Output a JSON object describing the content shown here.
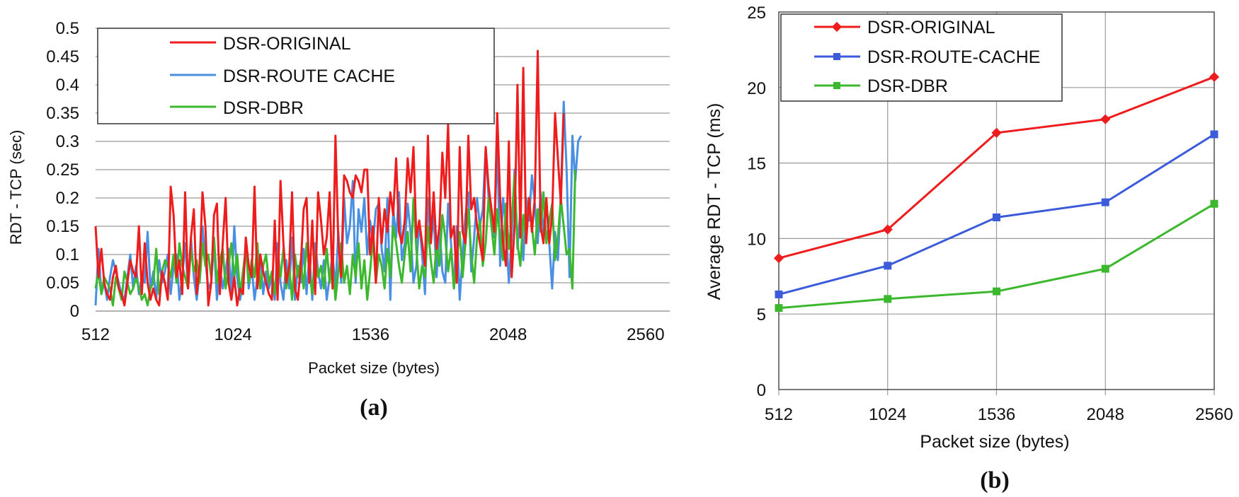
{
  "chart_data": [
    {
      "id": "a",
      "type": "line",
      "caption": "(a)",
      "xlabel": "Packet size (bytes)",
      "ylabel": "RDT - TCP (sec)",
      "xlim": [
        512,
        2650
      ],
      "ylim": [
        0,
        0.5
      ],
      "x_ticks": [
        512,
        1024,
        1536,
        2048,
        2560
      ],
      "x_tick_labels": [
        "512",
        "1024",
        "1536",
        "2048",
        "2560"
      ],
      "y_ticks": [
        0,
        0.05,
        0.1,
        0.15,
        0.2,
        0.25,
        0.3,
        0.35,
        0.4,
        0.45,
        0.5
      ],
      "y_tick_labels": [
        "0",
        "0.05",
        "0.1",
        "0.15",
        "0.2",
        "0.25",
        "0.3",
        "0.35",
        "0.4",
        "0.45",
        "0.5"
      ],
      "grid": "horizontal",
      "legend_position": "top-left",
      "x_step": 10.76,
      "series": [
        {
          "name": "DSR-ORIGINAL",
          "color": "#ee1c1c",
          "values": [
            0.15,
            0.06,
            0.11,
            0.05,
            0.03,
            0.02,
            0.06,
            0.08,
            0.04,
            0.03,
            0.01,
            0.05,
            0.09,
            0.07,
            0.06,
            0.15,
            0.03,
            0.12,
            0.05,
            0.02,
            0.04,
            0.02,
            0.01,
            0.07,
            0.05,
            0.02,
            0.22,
            0.17,
            0.06,
            0.09,
            0.03,
            0.21,
            0.04,
            0.13,
            0.18,
            0.03,
            0.08,
            0.21,
            0.15,
            0.01,
            0.05,
            0.17,
            0.19,
            0.03,
            0.12,
            0.2,
            0.05,
            0.02,
            0.06,
            0.01,
            0.04,
            0.03,
            0.13,
            0.08,
            0.06,
            0.22,
            0.04,
            0.1,
            0.07,
            0.05,
            0.03,
            0.02,
            0.16,
            0.02,
            0.23,
            0.12,
            0.05,
            0.08,
            0.21,
            0.04,
            0.02,
            0.08,
            0.18,
            0.2,
            0.05,
            0.16,
            0.03,
            0.21,
            0.16,
            0.1,
            0.13,
            0.21,
            0.04,
            0.31,
            0.12,
            0.06,
            0.24,
            0.23,
            0.21,
            0.2,
            0.24,
            0.23,
            0.21,
            0.25,
            0.25,
            0.1,
            0.15,
            0.05,
            0.2,
            0.12,
            0.18,
            0.14,
            0.21,
            0.17,
            0.27,
            0.14,
            0.12,
            0.16,
            0.27,
            0.21,
            0.29,
            0.13,
            0.16,
            0.12,
            0.08,
            0.31,
            0.12,
            0.21,
            0.11,
            0.15,
            0.28,
            0.2,
            0.33,
            0.13,
            0.15,
            0.05,
            0.29,
            0.14,
            0.12,
            0.31,
            0.18,
            0.2,
            0.15,
            0.12,
            0.09,
            0.29,
            0.22,
            0.18,
            0.14,
            0.35,
            0.2,
            0.12,
            0.08,
            0.3,
            0.06,
            0.15,
            0.4,
            0.13,
            0.43,
            0.12,
            0.2,
            0.14,
            0.2,
            0.46,
            0.15,
            0.12,
            0.2,
            0.12,
            0.17,
            0.35,
            0.27,
            0.19,
            0.35
          ]
        },
        {
          "name": "DSR-ROUTE CACHE",
          "color": "#4a90e2",
          "values": [
            0.01,
            0.11,
            0.03,
            0.05,
            0.02,
            0.06,
            0.09,
            0.07,
            0.05,
            0.03,
            0.02,
            0.06,
            0.1,
            0.04,
            0.08,
            0.03,
            0.06,
            0.05,
            0.14,
            0.04,
            0.07,
            0.02,
            0.09,
            0.05,
            0.07,
            0.1,
            0.03,
            0.08,
            0.1,
            0.02,
            0.06,
            0.12,
            0.04,
            0.13,
            0.06,
            0.02,
            0.07,
            0.15,
            0.09,
            0.04,
            0.05,
            0.12,
            0.02,
            0.08,
            0.04,
            0.07,
            0.11,
            0.03,
            0.15,
            0.06,
            0.02,
            0.05,
            0.12,
            0.04,
            0.08,
            0.02,
            0.06,
            0.1,
            0.03,
            0.07,
            0.04,
            0.06,
            0.02,
            0.12,
            0.05,
            0.02,
            0.09,
            0.04,
            0.13,
            0.02,
            0.08,
            0.05,
            0.11,
            0.03,
            0.1,
            0.02,
            0.12,
            0.07,
            0.04,
            0.09,
            0.02,
            0.06,
            0.1,
            0.04,
            0.14,
            0.05,
            0.2,
            0.12,
            0.15,
            0.23,
            0.05,
            0.18,
            0.14,
            0.2,
            0.1,
            0.16,
            0.12,
            0.18,
            0.19,
            0.11,
            0.07,
            0.2,
            0.02,
            0.18,
            0.13,
            0.21,
            0.09,
            0.12,
            0.19,
            0.14,
            0.05,
            0.08,
            0.16,
            0.1,
            0.03,
            0.2,
            0.12,
            0.17,
            0.06,
            0.15,
            0.07,
            0.05,
            0.19,
            0.12,
            0.04,
            0.15,
            0.02,
            0.1,
            0.17,
            0.21,
            0.07,
            0.13,
            0.2,
            0.15,
            0.18,
            0.29,
            0.2,
            0.17,
            0.13,
            0.3,
            0.08,
            0.2,
            0.15,
            0.05,
            0.13,
            0.25,
            0.11,
            0.18,
            0.09,
            0.2,
            0.16,
            0.24,
            0.19,
            0.12,
            0.21,
            0.14,
            0.19,
            0.12,
            0.04,
            0.14,
            0.09,
            0.2,
            0.37,
            0.25,
            0.06,
            0.31,
            0.23,
            0.3,
            0.31
          ]
        },
        {
          "name": "DSR-DBR",
          "color": "#3cb82e",
          "values": [
            0.04,
            0.07,
            0.03,
            0.06,
            0.05,
            0.04,
            0.01,
            0.06,
            0.04,
            0.02,
            0.07,
            0.05,
            0.03,
            0.04,
            0.06,
            0.04,
            0.02,
            0.03,
            0.01,
            0.04,
            0.05,
            0.11,
            0.03,
            0.07,
            0.09,
            0.08,
            0.06,
            0.1,
            0.05,
            0.12,
            0.08,
            0.06,
            0.04,
            0.11,
            0.07,
            0.09,
            0.05,
            0.12,
            0.08,
            0.1,
            0.06,
            0.13,
            0.05,
            0.09,
            0.11,
            0.04,
            0.08,
            0.12,
            0.06,
            0.1,
            0.03,
            0.07,
            0.11,
            0.05,
            0.09,
            0.06,
            0.12,
            0.04,
            0.08,
            0.1,
            0.05,
            0.07,
            0.03,
            0.09,
            0.06,
            0.11,
            0.04,
            0.08,
            0.02,
            0.1,
            0.06,
            0.09,
            0.04,
            0.12,
            0.07,
            0.03,
            0.1,
            0.06,
            0.08,
            0.04,
            0.11,
            0.05,
            0.09,
            0.02,
            0.07,
            0.12,
            0.05,
            0.08,
            0.03,
            0.1,
            0.06,
            0.12,
            0.04,
            0.09,
            0.02,
            0.07,
            0.13,
            0.05,
            0.1,
            0.08,
            0.04,
            0.11,
            0.06,
            0.15,
            0.12,
            0.08,
            0.05,
            0.1,
            0.14,
            0.07,
            0.2,
            0.11,
            0.04,
            0.08,
            0.06,
            0.15,
            0.09,
            0.05,
            0.12,
            0.08,
            0.17,
            0.13,
            0.07,
            0.11,
            0.04,
            0.09,
            0.14,
            0.06,
            0.12,
            0.18,
            0.1,
            0.05,
            0.13,
            0.16,
            0.08,
            0.12,
            0.2,
            0.15,
            0.1,
            0.18,
            0.13,
            0.09,
            0.19,
            0.11,
            0.16,
            0.24,
            0.12,
            0.08,
            0.17,
            0.13,
            0.2,
            0.15,
            0.1,
            0.18,
            0.14,
            0.21,
            0.12,
            0.16,
            0.19,
            0.09,
            0.13,
            0.2,
            0.15,
            0.1,
            0.11,
            0.04,
            0.25
          ]
        }
      ]
    },
    {
      "id": "b",
      "type": "line",
      "caption": "(b)",
      "xlabel": "Packet size (bytes)",
      "ylabel": "Average RDT - TCP (ms)",
      "categories": [
        "512",
        "1024",
        "1536",
        "2048",
        "2560"
      ],
      "ylim": [
        0,
        25
      ],
      "y_ticks": [
        0,
        5,
        10,
        15,
        20,
        25
      ],
      "y_tick_labels": [
        "0",
        "5",
        "10",
        "15",
        "20",
        "25"
      ],
      "grid": "both",
      "legend_position": "top-left",
      "series": [
        {
          "name": "DSR-ORIGINAL",
          "color": "#ee1c1c",
          "marker": "diamond",
          "values": [
            8.7,
            10.6,
            17.0,
            17.9,
            20.7
          ]
        },
        {
          "name": "DSR-ROUTE-CACHE",
          "color": "#3b5bdb",
          "marker": "square",
          "values": [
            6.3,
            8.2,
            11.4,
            12.4,
            16.9
          ]
        },
        {
          "name": "DSR-DBR",
          "color": "#3cb82e",
          "marker": "square",
          "values": [
            5.4,
            6.0,
            6.5,
            8.0,
            12.3
          ]
        }
      ]
    }
  ]
}
